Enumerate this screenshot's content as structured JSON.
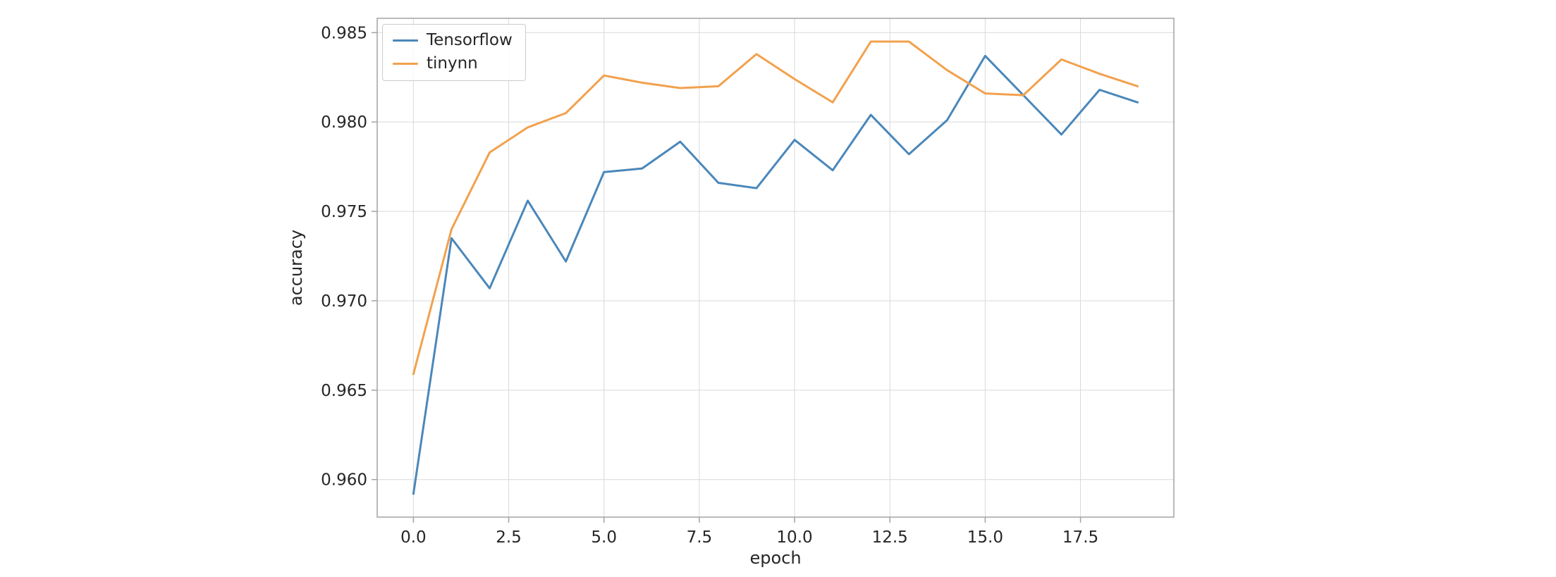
{
  "page": {
    "background": "#ffffff"
  },
  "chart_data": {
    "type": "line",
    "title": "",
    "xlabel": "epoch",
    "ylabel": "accuracy",
    "x": [
      0,
      1,
      2,
      3,
      4,
      5,
      6,
      7,
      8,
      9,
      10,
      11,
      12,
      13,
      14,
      15,
      16,
      17,
      18,
      19
    ],
    "series": [
      {
        "name": "Tensorflow",
        "color": "#4a87ba",
        "values": [
          0.9592,
          0.9735,
          0.9707,
          0.9756,
          0.9722,
          0.9772,
          0.9774,
          0.9789,
          0.9766,
          0.9763,
          0.979,
          0.9773,
          0.9804,
          0.9782,
          0.9801,
          0.9837,
          0.9815,
          0.9793,
          0.9818,
          0.9811
        ]
      },
      {
        "name": "tinynn",
        "color": "#f2a14e",
        "values": [
          0.9659,
          0.974,
          0.9783,
          0.9797,
          0.9805,
          0.9826,
          0.9822,
          0.9819,
          0.982,
          0.9838,
          0.9824,
          0.9811,
          0.9845,
          0.9845,
          0.9829,
          0.9816,
          0.9815,
          0.9835,
          0.9827,
          0.982
        ]
      }
    ],
    "xticks": [
      0.0,
      2.5,
      5.0,
      7.5,
      10.0,
      12.5,
      15.0,
      17.5
    ],
    "yticks": [
      0.96,
      0.965,
      0.97,
      0.975,
      0.98,
      0.985
    ],
    "xlim": [
      -0.95,
      19.95
    ],
    "ylim": [
      0.9579,
      0.9858
    ],
    "grid": true,
    "grid_color": "#d9d9d9",
    "spine_color": "#a3a3a3",
    "legend_position": "upper left"
  }
}
